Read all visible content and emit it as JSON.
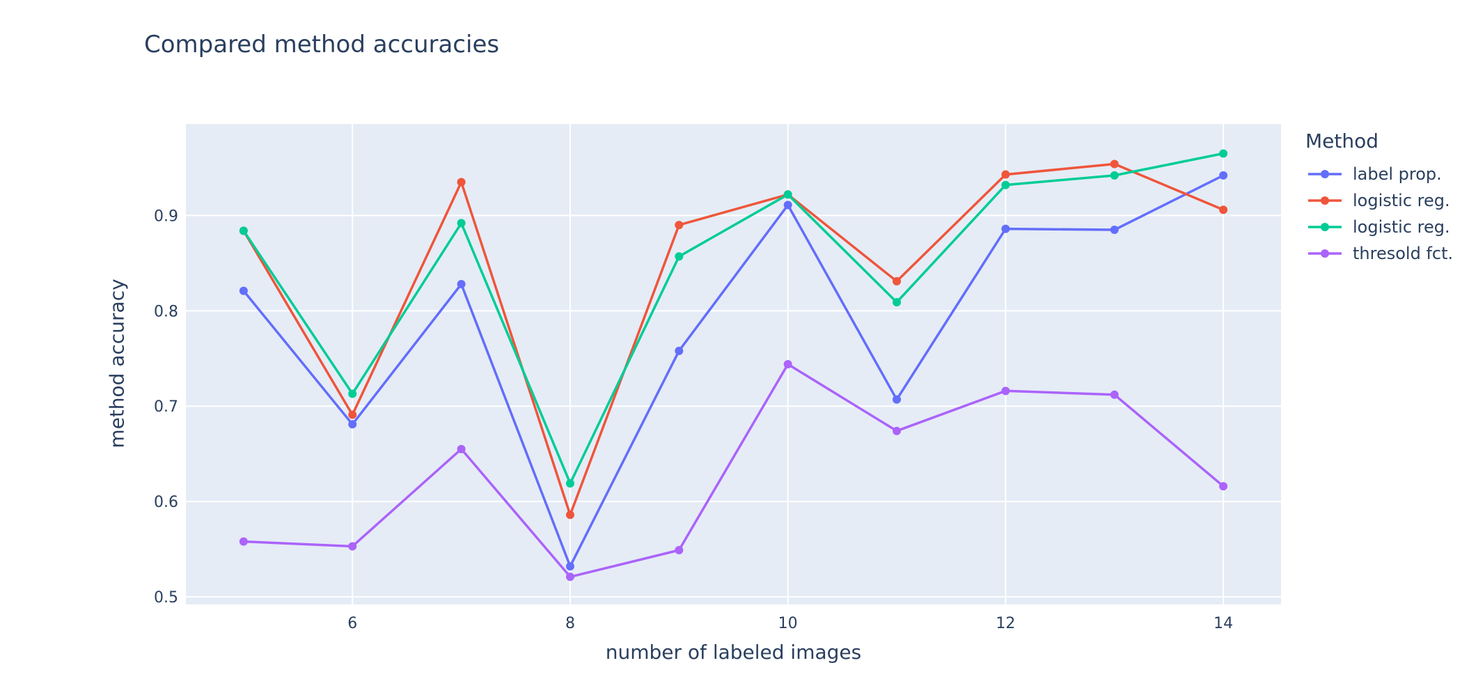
{
  "chart_data": {
    "type": "line",
    "title": "Compared method accuracies",
    "xlabel": "number of labeled images",
    "ylabel": "method accuracy",
    "x": [
      5,
      6,
      7,
      8,
      9,
      10,
      11,
      12,
      13,
      14
    ],
    "xlim": [
      4.47,
      14.53
    ],
    "ylim": [
      0.492,
      0.996
    ],
    "xticks": [
      6,
      8,
      10,
      12,
      14
    ],
    "yticks": [
      0.5,
      0.6,
      0.7,
      0.8,
      0.9
    ],
    "ytick_labels": [
      "0.5",
      "0.6",
      "0.7",
      "0.8",
      "0.9"
    ],
    "grid": true,
    "legend_title": "Method",
    "legend_position": "right",
    "plot_background": "#e5ecf6",
    "series": [
      {
        "name": "label prop.",
        "color": "#636efa",
        "values": [
          0.821,
          0.681,
          0.828,
          0.532,
          0.758,
          0.911,
          0.707,
          0.886,
          0.885,
          0.942
        ]
      },
      {
        "name": "logistic reg.",
        "color": "#ef553b",
        "values": [
          0.884,
          0.691,
          0.935,
          0.586,
          0.89,
          0.922,
          0.831,
          0.943,
          0.954,
          0.906
        ]
      },
      {
        "name": "logistic reg.",
        "color": "#00cc96",
        "values": [
          0.884,
          0.713,
          0.892,
          0.619,
          0.857,
          0.922,
          0.809,
          0.932,
          0.942,
          0.965
        ]
      },
      {
        "name": "thresold fct.",
        "color": "#ab63fa",
        "values": [
          0.558,
          0.553,
          0.655,
          0.521,
          0.549,
          0.744,
          0.674,
          0.716,
          0.712,
          0.616
        ]
      }
    ]
  }
}
